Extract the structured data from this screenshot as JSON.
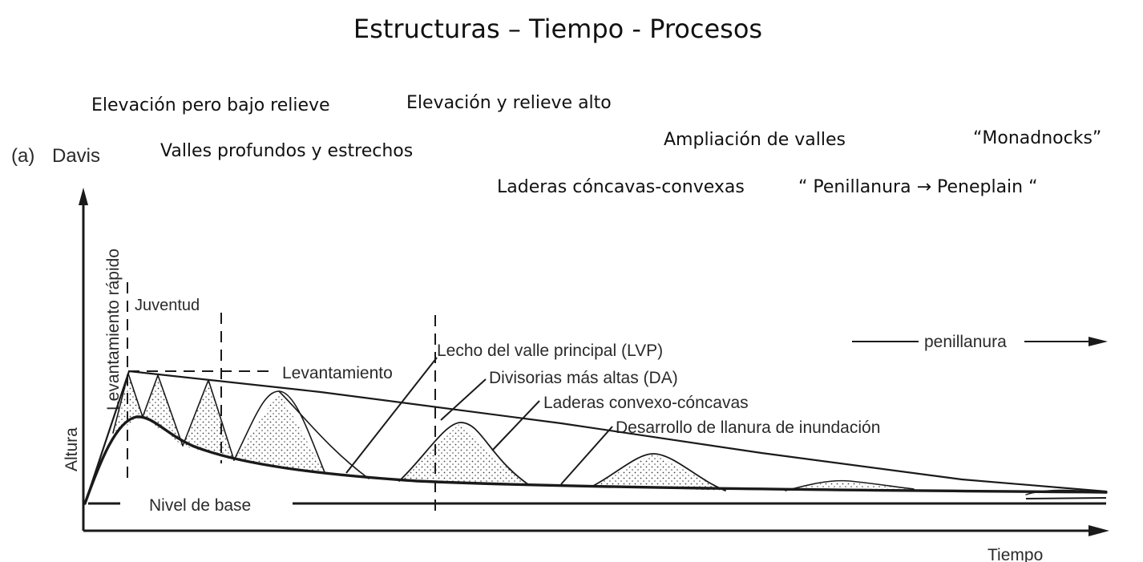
{
  "title": "Estructuras – Tiempo - Procesos",
  "annotations": {
    "elevacion_bajo_relieve": "Elevación pero bajo relieve",
    "elevacion_relieve_alto": "Elevación y relieve alto",
    "valles_profundos": "Valles profundos y estrechos",
    "ampliacion_valles": "Ampliación de valles",
    "monadnocks": "“Monadnocks”",
    "laderas": "Laderas cóncavas-convexas",
    "penillanura_peneplain": "“ Penillanura → Peneplain “"
  },
  "figure": {
    "panel_label": "(a)",
    "model": "Davis",
    "y_axis_label": "Altura",
    "uplift_label": "Levantamiento rápido",
    "juventud": "Juventud",
    "levantamiento": "Levantamiento",
    "lvp": "Lecho del valle principal (LVP)",
    "da": "Divisorias más altas (DA)",
    "laderas_cc": "Laderas convexo-cóncavas",
    "llanura": "Desarrollo de llanura de inundación",
    "penillanura": "penillanura",
    "nivel_base": "Nivel de base",
    "x_axis_label": "Tiempo"
  },
  "colors": {
    "line": "#1a1a1a",
    "stipple": "#444444"
  }
}
